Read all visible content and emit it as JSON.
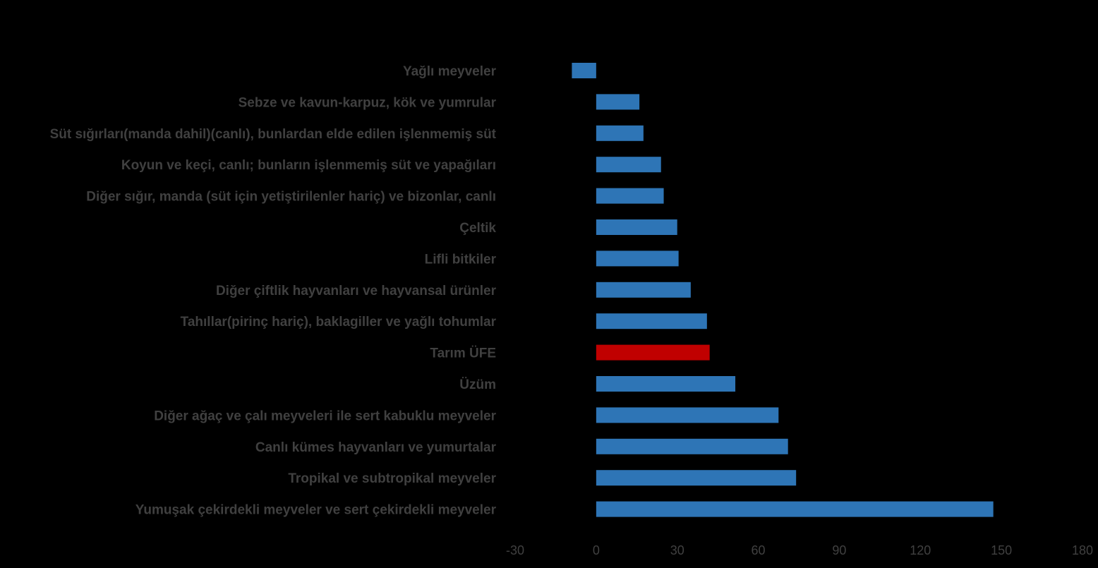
{
  "chart_data": {
    "type": "bar",
    "orientation": "horizontal",
    "title": "",
    "xlabel": "",
    "ylabel": "",
    "xlim": [
      -30,
      180
    ],
    "xticks": [
      "-30",
      "0",
      "30",
      "60",
      "90",
      "120",
      "150",
      "180"
    ],
    "grid": false,
    "legend": "none",
    "colors": {
      "default": "#2E75B6",
      "highlight": "#C00000",
      "text": "#404040",
      "background": "#000000"
    },
    "categories": [
      "Yağlı meyveler",
      "Sebze ve kavun-karpuz, kök ve yumrular",
      "Süt sığırları(manda dahil)(canlı), bunlardan elde edilen işlenmemiş süt",
      "Koyun ve keçi, canlı; bunların işlenmemiş süt ve yapağıları",
      "Diğer sığır, manda (süt için yetiştirilenler hariç) ve bizonlar, canlı",
      "Çeltik",
      "Lifli bitkiler",
      "Diğer çiftlik hayvanları ve hayvansal ürünler",
      "Tahıllar(pirinç hariç), baklagiller ve yağlı tohumlar",
      "Tarım ÜFE",
      "Üzüm",
      "Diğer ağaç ve çalı meyveleri ile sert kabuklu meyveler",
      "Canlı kümes hayvanları ve yumurtalar",
      "Tropikal ve subtropikal meyveler",
      "Yumuşak çekirdekli meyveler ve sert çekirdekli meyveler"
    ],
    "values": [
      -9,
      16,
      17.5,
      24,
      25,
      30,
      30.5,
      35,
      41,
      42,
      51.5,
      67.5,
      71,
      74,
      147
    ],
    "highlight_index": 9
  }
}
